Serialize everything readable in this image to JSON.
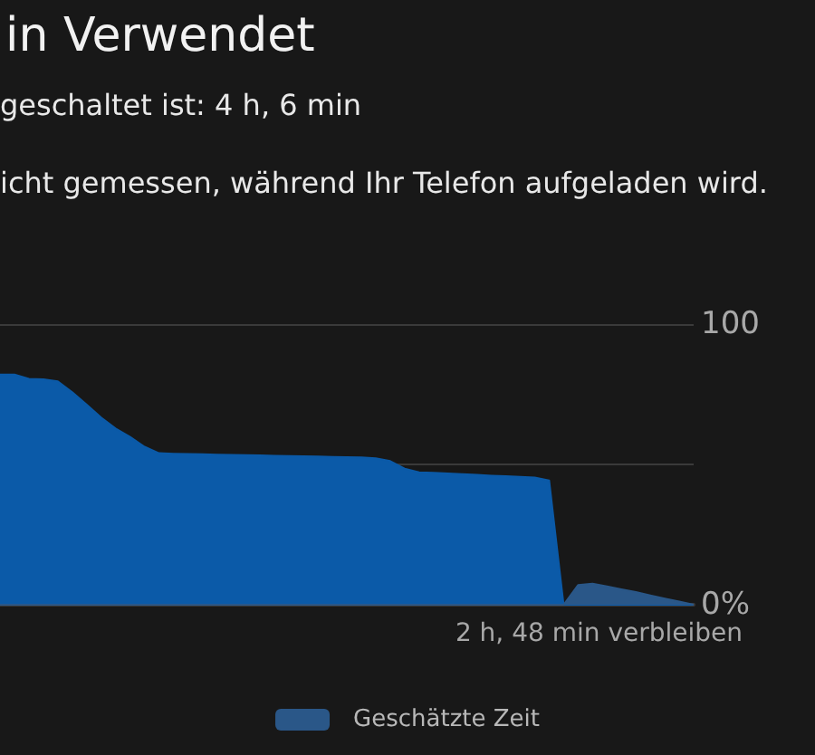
{
  "chart_data": {
    "type": "area",
    "title": "in Verwendet",
    "annotations": [
      "geschaltet ist: 4 h, 6 min",
      "icht gemessen, während Ihr Telefon aufgeladen wird.",
      "2 h, 48 min verbleiben"
    ],
    "categories": [
      null,
      null,
      null,
      null,
      null,
      null,
      null,
      null,
      null,
      null,
      null,
      null,
      null,
      null,
      null,
      null,
      null,
      null,
      null,
      null,
      null,
      null,
      null,
      null,
      null,
      null,
      null,
      null,
      null,
      null,
      null,
      null,
      null,
      null,
      null,
      null,
      null,
      null,
      null,
      null,
      null,
      null,
      null,
      null,
      null,
      null,
      null,
      null,
      null
    ],
    "series": [
      {
        "color": "#0b5aa8",
        "values": [
          82,
          82,
          80.5,
          80.3,
          79.6,
          75.7,
          71.3,
          66.7,
          62.8,
          59.8,
          56.3,
          54,
          53.8,
          53.7,
          53.6,
          53.5,
          53.4,
          53.3,
          53.2,
          53.1,
          53,
          52.9,
          52.8,
          52.7,
          52.6,
          52.5,
          52.2,
          51.2,
          48.5,
          47.2,
          47,
          46.8,
          46.5,
          46.3,
          46,
          45.8,
          45.6,
          45.3,
          44.3,
          0,
          0,
          0,
          0,
          0,
          0,
          0,
          0,
          0,
          0
        ]
      },
      {
        "name": "Geschätzte Zeit",
        "color": "#2a5788",
        "values": [
          0,
          0,
          0,
          0,
          0,
          0,
          0,
          0,
          0,
          0,
          0,
          0,
          0,
          0,
          0,
          0,
          0,
          0,
          0,
          0,
          0,
          0,
          0,
          0,
          0,
          0,
          0,
          0,
          0,
          0,
          0,
          0,
          0,
          0,
          0,
          0,
          0,
          0,
          0,
          0,
          7,
          7.5,
          6.5,
          5.5,
          4.5,
          3.3,
          2.2,
          1.1,
          0
        ]
      }
    ],
    "ylim": [
      0,
      100
    ],
    "yticks": [
      {
        "value": 0,
        "label": "0%"
      },
      {
        "value": 50,
        "label": null
      },
      100
    ],
    "tick_labels": "y",
    "grid": "y",
    "legend": "bottom"
  }
}
